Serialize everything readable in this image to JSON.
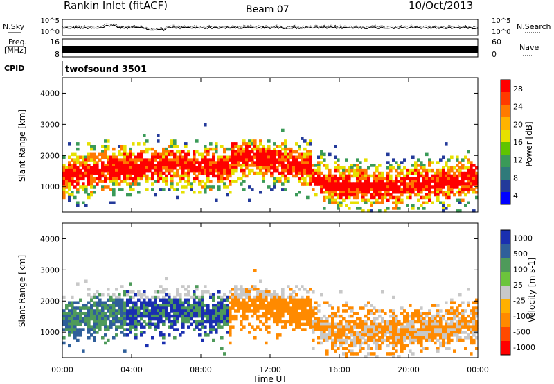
{
  "header": {
    "title": "Rankin Inlet (fitACF)",
    "beam": "Beam 07",
    "date": "10/Oct/2013"
  },
  "strip_noise": {
    "left_label": "N.Sky",
    "right_label": "N.Search",
    "left_ticks": [
      "10^5",
      "10^0"
    ],
    "right_ticks": [
      "10^5",
      "10^0"
    ]
  },
  "strip_freq": {
    "left_label_1": "Freq.",
    "left_label_2": "[MHz]",
    "left_ticks": [
      "16",
      "8"
    ],
    "right_label": "Nave",
    "right_ticks": [
      "60",
      "0"
    ]
  },
  "strip_cpid": {
    "left_label": "CPID",
    "program": "twofsound 3501"
  },
  "x_axis": {
    "label": "Time UT",
    "ticks": [
      "00:00",
      "04:00",
      "08:00",
      "12:00",
      "16:00",
      "20:00",
      "00:00"
    ]
  },
  "power_panel": {
    "ylabel": "Slant Range [km]",
    "cbar_label": "Power [dB]",
    "cbar_ticks": [
      "28",
      "24",
      "20",
      "16",
      "12",
      "8",
      "4"
    ],
    "cbar_colors": [
      "#ff0000",
      "#ff3a00",
      "#ff7a00",
      "#ffb300",
      "#e6e000",
      "#5fc400",
      "#3a9a58",
      "#2f7a7a",
      "#233a9a",
      "#0000ff"
    ]
  },
  "velocity_panel": {
    "ylabel": "Slant Range [km]",
    "cbar_label": "Velocity [m s-1]",
    "cbar_ticks": [
      "1000",
      "500",
      "100",
      "25",
      "-25",
      "-100",
      "-500",
      "-1000"
    ],
    "cbar_colors": [
      "#1a2fb0",
      "#2f5f9a",
      "#4e9a5a",
      "#6cc43c",
      "#c8c8c8",
      "#ffb000",
      "#ff8a00",
      "#ff4a00",
      "#ff0000"
    ]
  },
  "chart_data": [
    {
      "type": "heatmap",
      "title": "Power",
      "xlabel": "Time UT",
      "ylabel": "Slant Range [km]",
      "xlim": [
        "00:00",
        "24:00"
      ],
      "ylim": [
        180,
        4500
      ],
      "x_ticks": [
        "00:00",
        "04:00",
        "08:00",
        "12:00",
        "16:00",
        "20:00",
        "00:00"
      ],
      "y_ticks": [
        1000,
        2000,
        3000,
        4000
      ],
      "colorbar": {
        "label": "Power [dB]",
        "ticks": [
          4,
          8,
          12,
          16,
          20,
          24,
          28
        ]
      }
    },
    {
      "type": "heatmap",
      "title": "Velocity",
      "xlabel": "Time UT",
      "ylabel": "Slant Range [km]",
      "xlim": [
        "00:00",
        "24:00"
      ],
      "ylim": [
        180,
        4500
      ],
      "x_ticks": [
        "00:00",
        "04:00",
        "08:00",
        "12:00",
        "16:00",
        "20:00",
        "00:00"
      ],
      "y_ticks": [
        1000,
        2000,
        3000,
        4000
      ],
      "colorbar": {
        "label": "Velocity [m s-1]",
        "ticks": [
          1000,
          500,
          100,
          25,
          -25,
          -100,
          -500,
          -1000
        ]
      }
    }
  ]
}
